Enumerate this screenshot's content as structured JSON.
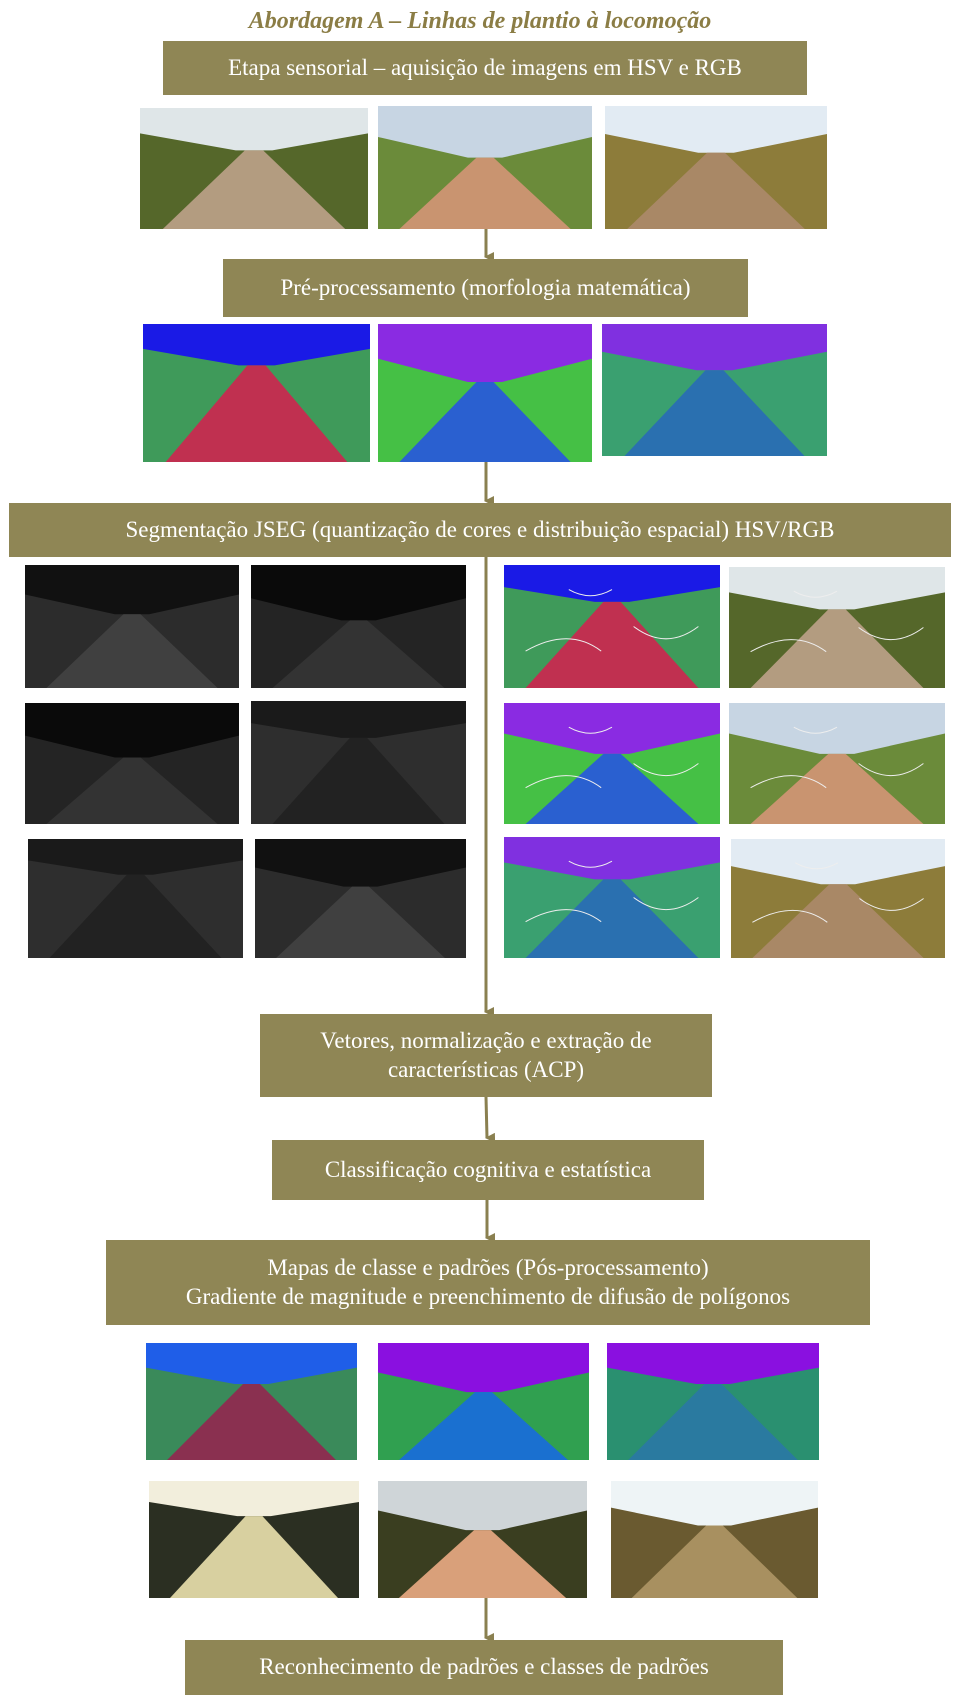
{
  "title": "Abordagem A – Linhas de plantio à locomoção",
  "steps": [
    {
      "lines": [
        "Etapa sensorial – aquisição de imagens em HSV e RGB"
      ]
    },
    {
      "lines": [
        "Pré-processamento (morfologia matemática)"
      ]
    },
    {
      "lines": [
        "Segmentação JSEG (quantização de cores e distribuição espacial) HSV/RGB"
      ]
    },
    {
      "lines": [
        "Vetores, normalização e extração de",
        "características (ACP)"
      ]
    },
    {
      "lines": [
        "Classificação cognitiva e estatística"
      ]
    },
    {
      "lines": [
        "Mapas de classe e padrões (Pós-processamento)",
        "Gradiente de magnitude e preenchimento de difusão de polígonos"
      ]
    },
    {
      "lines": [
        "Reconhecimento de padrões e classes de padrões"
      ]
    }
  ]
}
